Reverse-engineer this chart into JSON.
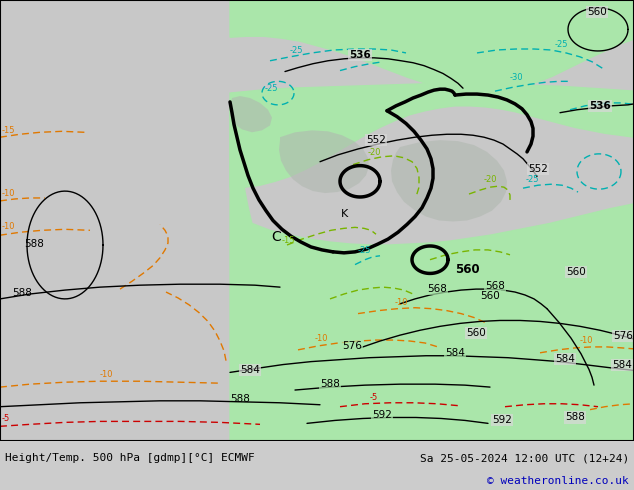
{
  "title_left": "Height/Temp. 500 hPa [gdmp][°C] ECMWF",
  "title_right": "Sa 25-05-2024 12:00 UTC (12+24)",
  "copyright": "© weatheronline.co.uk",
  "bg_color": "#d8d8d8",
  "map_bg": "#d8d8d8",
  "green_fill": "#aae6aa",
  "gray_land": "#b8b8b8",
  "figsize": [
    6.34,
    4.9
  ],
  "dpi": 100,
  "title_fontsize": 8.0,
  "copyright_fontsize": 8.0,
  "label_fontsize": 7.5
}
